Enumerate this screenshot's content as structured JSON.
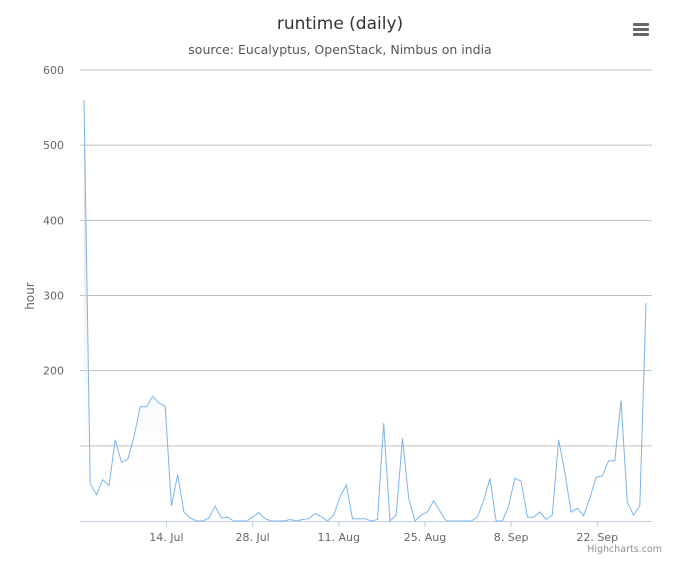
{
  "header": {
    "title": "runtime (daily)",
    "subtitle": "source: Eucalyptus, OpenStack, Nimbus on india"
  },
  "menu": {
    "icon": "hamburger-menu-icon"
  },
  "credits": "Highcharts.com",
  "chart_data": {
    "type": "area",
    "title": "runtime (daily)",
    "subtitle": "source: Eucalyptus, OpenStack, Nimbus on india",
    "xlabel": "",
    "ylabel": "hour",
    "ylim": [
      0,
      600
    ],
    "y_ticks": [
      600,
      500,
      400,
      300,
      200
    ],
    "x_tick_labels": [
      "14. Jul",
      "28. Jul",
      "11. Aug",
      "25. Aug",
      "8. Sep",
      "22. Sep"
    ],
    "grid": true,
    "colors": {
      "line": "#7cb5ec",
      "fill_top": "#c8c8c8",
      "grid": "#c0c0c0",
      "axis": "#c0d0e0"
    },
    "series": [
      {
        "values": [
          560,
          50,
          35,
          55,
          47,
          108,
          78,
          82,
          112,
          152,
          152,
          166,
          157,
          153,
          20,
          62,
          12,
          4,
          0,
          0,
          4,
          20,
          4,
          5,
          0,
          0,
          0,
          5,
          11,
          3,
          0,
          0,
          0,
          2,
          0,
          2,
          3,
          10,
          6,
          0,
          8,
          32,
          48,
          3,
          3,
          3,
          0,
          2,
          130,
          0,
          8,
          110,
          30,
          0,
          8,
          12,
          27,
          13,
          0,
          0,
          0,
          0,
          0,
          5,
          27,
          57,
          0,
          0,
          20,
          57,
          53,
          5,
          5,
          12,
          2,
          8,
          108,
          65,
          12,
          17,
          7,
          30,
          58,
          60,
          80,
          80,
          160,
          25,
          8,
          20,
          290
        ]
      }
    ]
  }
}
